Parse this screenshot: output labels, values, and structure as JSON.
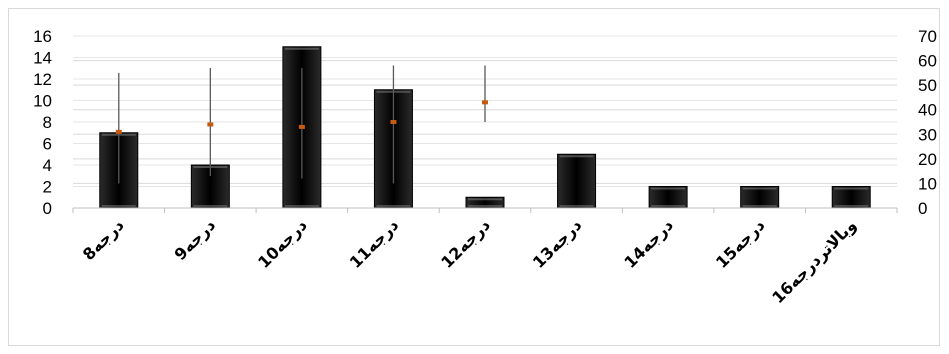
{
  "chart_data": {
    "type": "bar",
    "categories": [
      "8درجه",
      "9درجه",
      "10درجه",
      "11درجه",
      "12درجه",
      "13درجه",
      "14درجه",
      "15درجه",
      "16وبالاتردرجه"
    ],
    "values": [
      7,
      4,
      15,
      11,
      1,
      5,
      2,
      2,
      2
    ],
    "ylim": [
      0,
      16
    ],
    "yticks": [
      0,
      2,
      4,
      6,
      8,
      10,
      12,
      14,
      16
    ],
    "secondary_axis": {
      "ylim": [
        0,
        70
      ],
      "yticks": [
        0,
        10,
        20,
        30,
        40,
        50,
        60,
        70
      ],
      "ranges": [
        {
          "category": "8درجه",
          "high": 55,
          "low": 10,
          "mid": 31
        },
        {
          "category": "9درجه",
          "high": 57,
          "low": 13,
          "mid": 34
        },
        {
          "category": "10درجه",
          "high": 57,
          "low": 12,
          "mid": 33
        },
        {
          "category": "11درجه",
          "high": 58,
          "low": 10,
          "mid": 35
        },
        {
          "category": "12درجه",
          "high": 58,
          "low": 35,
          "mid": 43
        }
      ]
    },
    "grid": true,
    "colors": {
      "bar": "#000000",
      "range_line": "#595959",
      "mid_marker": "#c55a11",
      "grid": "#d9d9d9"
    }
  }
}
